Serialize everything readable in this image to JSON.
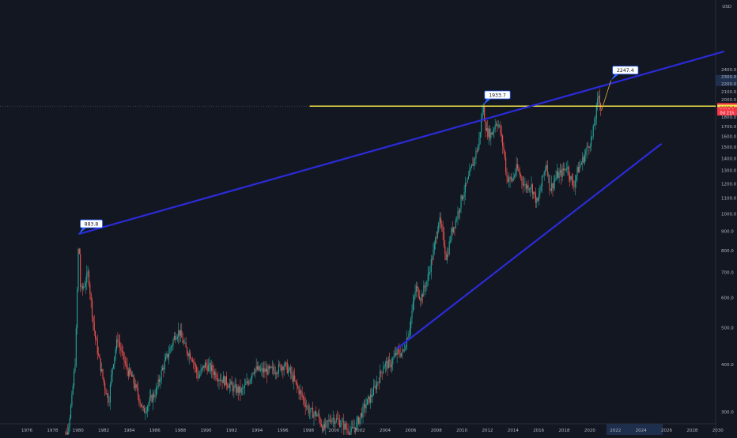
{
  "chart_data": {
    "type": "candlestick",
    "x_unit": "year",
    "y_scale": "log",
    "currency": "USD",
    "y_ticks": [
      300,
      400,
      500,
      600,
      700,
      800,
      900,
      1000,
      1100,
      1200,
      1300,
      1400,
      1500,
      1600,
      1700,
      1800,
      1900,
      2000,
      2100,
      2200,
      2300,
      2400
    ],
    "y_tick_labels": [
      "300.0",
      "400.0",
      "500.0",
      "600.0",
      "700.0",
      "800.0",
      "900.0",
      "1000.0",
      "1100.0",
      "1200.0",
      "1300.0",
      "1400.0",
      "1500.0",
      "1600.0",
      "1700.0",
      "1800.0",
      "1900.0",
      "2000.0",
      "2100.0",
      "2200.0",
      "2300.0",
      "2400.0"
    ],
    "x_ticks": [
      1976,
      1978,
      1980,
      1982,
      1984,
      1986,
      1988,
      1990,
      1992,
      1994,
      1996,
      1998,
      2000,
      2002,
      2004,
      2006,
      2008,
      2010,
      2012,
      2014,
      2016,
      2018,
      2020,
      2022,
      2024,
      2026,
      2028,
      2030
    ],
    "x_tick_labels": [
      "1976",
      "1978",
      "1980",
      "1982",
      "1984",
      "1986",
      "1988",
      "1990",
      "1992",
      "1994",
      "1996",
      "1998",
      "2000",
      "2002",
      "2004",
      "2006",
      "2008",
      "2010",
      "2012",
      "2014",
      "2016",
      "2018",
      "2020",
      "2022",
      "2024",
      "2026",
      "2028",
      "2030"
    ],
    "highlighted_x_range": [
      2021.3,
      2025.7
    ],
    "price_path": [
      [
        1978.6,
        240
      ],
      [
        1979.2,
        270
      ],
      [
        1979.5,
        320
      ],
      [
        1979.8,
        420
      ],
      [
        1980.05,
        883.8
      ],
      [
        1980.2,
        620
      ],
      [
        1980.5,
        650
      ],
      [
        1980.8,
        700
      ],
      [
        1981.0,
        590
      ],
      [
        1981.3,
        480
      ],
      [
        1981.6,
        420
      ],
      [
        1982.0,
        360
      ],
      [
        1982.4,
        320
      ],
      [
        1982.7,
        400
      ],
      [
        1983.1,
        470
      ],
      [
        1983.4,
        430
      ],
      [
        1983.8,
        390
      ],
      [
        1984.2,
        370
      ],
      [
        1984.6,
        340
      ],
      [
        1985.1,
        300
      ],
      [
        1985.6,
        320
      ],
      [
        1986.1,
        340
      ],
      [
        1986.6,
        390
      ],
      [
        1987.2,
        440
      ],
      [
        1987.6,
        480
      ],
      [
        1987.9,
        490
      ],
      [
        1988.4,
        440
      ],
      [
        1988.9,
        420
      ],
      [
        1989.4,
        370
      ],
      [
        1989.9,
        400
      ],
      [
        1990.4,
        390
      ],
      [
        1991.0,
        370
      ],
      [
        1991.6,
        360
      ],
      [
        1992.2,
        345
      ],
      [
        1992.8,
        340
      ],
      [
        1993.3,
        360
      ],
      [
        1993.7,
        390
      ],
      [
        1994.3,
        385
      ],
      [
        1995.0,
        385
      ],
      [
        1995.6,
        390
      ],
      [
        1996.1,
        400
      ],
      [
        1996.6,
        380
      ],
      [
        1997.1,
        350
      ],
      [
        1997.6,
        325
      ],
      [
        1998.1,
        300
      ],
      [
        1998.7,
        295
      ],
      [
        1999.2,
        270
      ],
      [
        1999.8,
        290
      ],
      [
        2000.3,
        285
      ],
      [
        2000.8,
        275
      ],
      [
        2001.3,
        265
      ],
      [
        2001.8,
        280
      ],
      [
        2002.4,
        310
      ],
      [
        2002.9,
        330
      ],
      [
        2003.4,
        360
      ],
      [
        2003.9,
        400
      ],
      [
        2004.4,
        400
      ],
      [
        2004.9,
        430
      ],
      [
        2005.4,
        430
      ],
      [
        2005.9,
        500
      ],
      [
        2006.4,
        640
      ],
      [
        2006.8,
        600
      ],
      [
        2007.3,
        670
      ],
      [
        2007.8,
        800
      ],
      [
        2008.2,
        970
      ],
      [
        2008.5,
        880
      ],
      [
        2008.8,
        760
      ],
      [
        2009.2,
        900
      ],
      [
        2009.6,
        980
      ],
      [
        2010.0,
        1110
      ],
      [
        2010.5,
        1230
      ],
      [
        2010.9,
        1380
      ],
      [
        2011.3,
        1520
      ],
      [
        2011.65,
        1933.7
      ],
      [
        2011.9,
        1650
      ],
      [
        2012.3,
        1620
      ],
      [
        2012.7,
        1760
      ],
      [
        2012.95,
        1680
      ],
      [
        2013.3,
        1450
      ],
      [
        2013.5,
        1250
      ],
      [
        2013.9,
        1220
      ],
      [
        2014.3,
        1320
      ],
      [
        2014.7,
        1230
      ],
      [
        2014.95,
        1180
      ],
      [
        2015.4,
        1190
      ],
      [
        2015.9,
        1060
      ],
      [
        2016.3,
        1240
      ],
      [
        2016.6,
        1360
      ],
      [
        2016.9,
        1160
      ],
      [
        2017.4,
        1260
      ],
      [
        2017.8,
        1280
      ],
      [
        2018.2,
        1340
      ],
      [
        2018.7,
        1180
      ],
      [
        2019.0,
        1290
      ],
      [
        2019.5,
        1400
      ],
      [
        2019.9,
        1520
      ],
      [
        2020.2,
        1600
      ],
      [
        2020.6,
        1970
      ],
      [
        2020.7,
        2070
      ],
      [
        2020.9,
        1870
      ]
    ],
    "annotations": [
      {
        "label": "883.8",
        "x": 1980.05,
        "y": 883.8
      },
      {
        "label": "1933.7",
        "x": 2011.65,
        "y": 1933.7
      },
      {
        "label": "2247.4",
        "x": 2021.65,
        "y": 2247.4
      }
    ],
    "trendlines": [
      {
        "color": "#2b2bd9",
        "from": [
          1980.05,
          883.8
        ],
        "to": [
          2030.5,
          2680
        ]
      },
      {
        "color": "#2b2bd9",
        "from": [
          2004.9,
          440
        ],
        "to": [
          2025.6,
          1530
        ]
      }
    ],
    "projection": {
      "color": "#c6a13a",
      "from": [
        2020.9,
        1870
      ],
      "to": [
        2021.65,
        2247.4
      ]
    },
    "horizontal_line": {
      "color": "#f2e44a",
      "y": 1922.6
    },
    "crosshair_y": 1922.6,
    "price_badges": [
      {
        "label": "1922.6",
        "y": 1922.6,
        "bg": "#f23645",
        "fg": "#ffffff"
      },
      {
        "label": "1922.6",
        "y": 1902.0,
        "bg": "#f2e44a",
        "fg": "#131722"
      },
      {
        "label": "1918.1",
        "y": 1876.0,
        "bg": "#f23645",
        "fg": "#ffffff"
      },
      {
        "label": "0d 21h",
        "y": 1851.0,
        "bg": "#f23645",
        "fg": "#ffffff"
      }
    ],
    "colors": {
      "background": "#131722",
      "up": "#26a69a",
      "down": "#ef5350",
      "axis_text": "#b2b5be",
      "highlight": "#1e2f4d"
    }
  }
}
